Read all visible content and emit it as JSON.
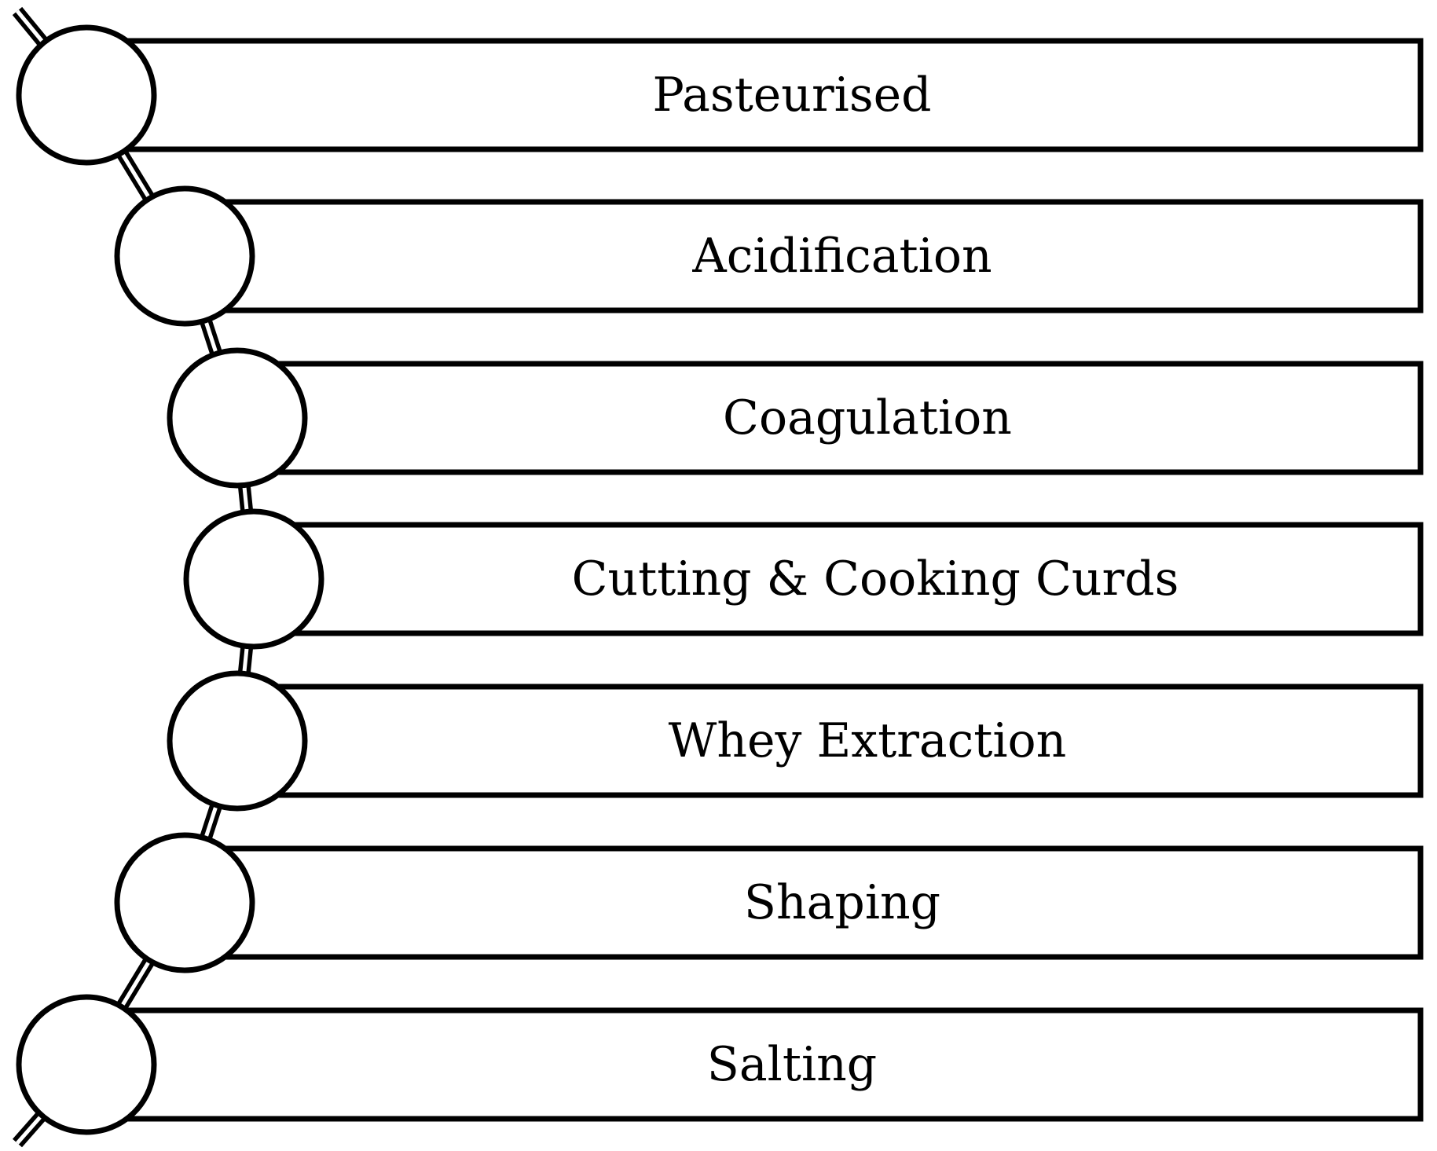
{
  "diagram": {
    "steps": [
      {
        "label": "Pasteurised"
      },
      {
        "label": "Acidification"
      },
      {
        "label": "Coagulation"
      },
      {
        "label": "Cutting & Cooking Curds"
      },
      {
        "label": "Whey Extraction"
      },
      {
        "label": "Shaping"
      },
      {
        "label": "Salting"
      }
    ],
    "colors": {
      "stroke": "#000000",
      "fill": "#ffffff"
    }
  }
}
